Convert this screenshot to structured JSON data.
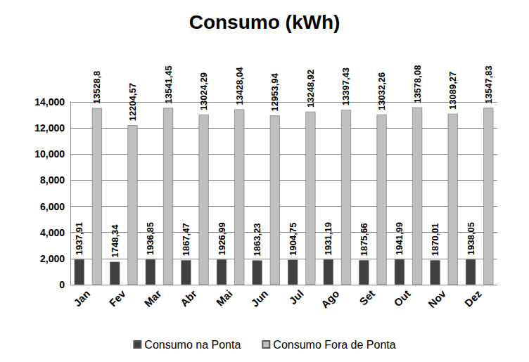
{
  "chart_data": {
    "type": "bar",
    "title": "Consumo (kWh)",
    "categories": [
      "Jan",
      "Fev",
      "Mar",
      "Abr",
      "Mai",
      "Jun",
      "Jul",
      "Ago",
      "Set",
      "Out",
      "Nov",
      "Dez"
    ],
    "series": [
      {
        "name": "Consumo na Ponta",
        "color": "#404040",
        "values": [
          1937.91,
          1748.34,
          1936.85,
          1867.47,
          1926.99,
          1863.23,
          1904.75,
          1931.19,
          1875.66,
          1941.99,
          1870.01,
          1938.05
        ],
        "value_labels": [
          "1937,91",
          "1748,34",
          "1936,85",
          "1867,47",
          "1926,99",
          "1863,23",
          "1904,75",
          "1931,19",
          "1875,66",
          "1941,99",
          "1870,01",
          "1938,05"
        ]
      },
      {
        "name": "Consumo Fora de Ponta",
        "color": "#bfbfbf",
        "values": [
          13528.8,
          12204.57,
          13541.45,
          13024.29,
          13428.04,
          12953.94,
          13248.92,
          13397.43,
          13032.26,
          13578.08,
          13089.27,
          13547.83
        ],
        "value_labels": [
          "13528,8",
          "12204,57",
          "13541,45",
          "13024,29",
          "13428,04",
          "12953,94",
          "13248,92",
          "13397,43",
          "13032,26",
          "13578,08",
          "13089,27",
          "13547,83"
        ]
      }
    ],
    "ylim": [
      0,
      14000
    ],
    "yticks": [
      0,
      2000,
      4000,
      6000,
      8000,
      10000,
      12000,
      14000
    ],
    "grid": true,
    "legend": "bottom",
    "data_labels": true
  }
}
